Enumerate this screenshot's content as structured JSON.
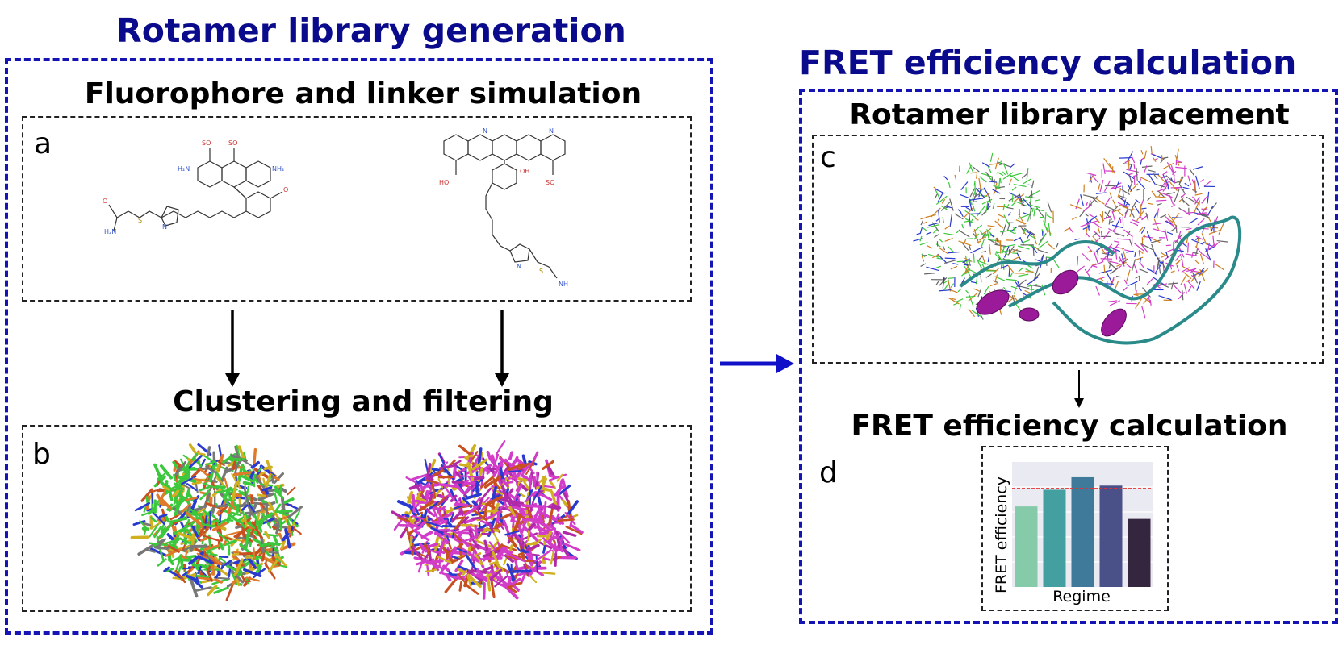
{
  "left": {
    "title": "Rotamer library generation",
    "step1_title": "Fluorophore and linker simulation",
    "step2_title": "Clustering and filtering",
    "panel_a": "a",
    "panel_b": "b"
  },
  "right": {
    "title": "FRET efficiency calculation",
    "step1_title": "Rotamer library placement",
    "step2_title": "FRET efficiency calculation",
    "panel_c": "c",
    "panel_d": "d"
  },
  "molecule_labels": {
    "sulfonate": "SO",
    "oxygen": "O",
    "nh2": "NH₂",
    "h2n": "H₂N",
    "nh": "NH",
    "n": "N",
    "s": "S",
    "oh": "OH",
    "hooc": "HO"
  },
  "chart_data": {
    "type": "bar",
    "categories": [
      "",
      "",
      "",
      "",
      ""
    ],
    "values": [
      0.58,
      0.7,
      0.79,
      0.73,
      0.49
    ],
    "reference_line": 0.71,
    "ylim": [
      0,
      0.9
    ],
    "xlabel": "Regime",
    "ylabel": "FRET efficiency",
    "colors": [
      "#86cba9",
      "#44a0a0",
      "#3f7a9a",
      "#4a5088",
      "#352640"
    ],
    "reference_color": "#e83030",
    "grid": true,
    "background": "#eaeaf2"
  },
  "colors": {
    "title": "#0a0a8c",
    "outer_border": "#1414b4",
    "donor": "#3cc83c",
    "acceptor": "#d23cc8",
    "helix": "#9a1a9a",
    "coil": "#2a8a8a"
  }
}
